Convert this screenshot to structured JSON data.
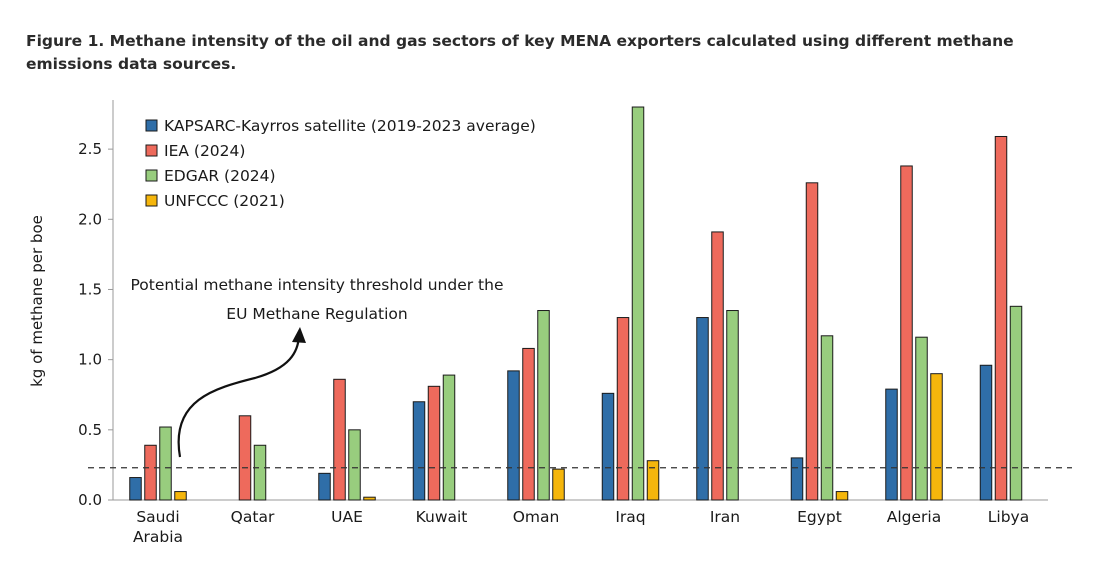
{
  "figure": {
    "title": "Figure 1. Methane intensity of the oil and gas sectors of key MENA exporters calculated using different methane emissions data sources."
  },
  "chart_data": {
    "type": "bar",
    "ylabel": "kg of methane per boe",
    "xlabel": "",
    "ylim": [
      0,
      2.85
    ],
    "yticks": [
      "0.0",
      "0.5",
      "1.0",
      "1.5",
      "2.0",
      "2.5"
    ],
    "grid": false,
    "legend_position": "top-left",
    "categories": [
      [
        "Saudi",
        "Arabia"
      ],
      [
        "Qatar"
      ],
      [
        "UAE"
      ],
      [
        "Kuwait"
      ],
      [
        "Oman"
      ],
      [
        "Iraq"
      ],
      [
        "Iran"
      ],
      [
        "Egypt"
      ],
      [
        "Algeria"
      ],
      [
        "Libya"
      ]
    ],
    "series": [
      {
        "name": "KAPSARC-Kayrros satellite (2019-2023 average)",
        "color": "#2f6ea8",
        "values": [
          0.16,
          null,
          0.19,
          0.7,
          0.92,
          0.76,
          1.3,
          0.3,
          0.79,
          0.96
        ]
      },
      {
        "name": "IEA (2024)",
        "color": "#ee6a5c",
        "values": [
          0.39,
          0.6,
          0.86,
          0.81,
          1.08,
          1.3,
          1.91,
          2.26,
          2.38,
          2.59
        ]
      },
      {
        "name": "EDGAR (2024)",
        "color": "#98cd7e",
        "values": [
          0.52,
          0.39,
          0.5,
          0.89,
          1.35,
          2.8,
          1.35,
          1.17,
          1.16,
          1.38
        ]
      },
      {
        "name": "UNFCCC (2021)",
        "color": "#f5b60c",
        "values": [
          0.06,
          null,
          0.02,
          null,
          0.22,
          0.28,
          null,
          0.06,
          0.9,
          null
        ]
      }
    ],
    "threshold": {
      "value": 0.23,
      "label_line1": "Potential methane intensity threshold under the",
      "label_line2": "EU Methane Regulation"
    }
  }
}
